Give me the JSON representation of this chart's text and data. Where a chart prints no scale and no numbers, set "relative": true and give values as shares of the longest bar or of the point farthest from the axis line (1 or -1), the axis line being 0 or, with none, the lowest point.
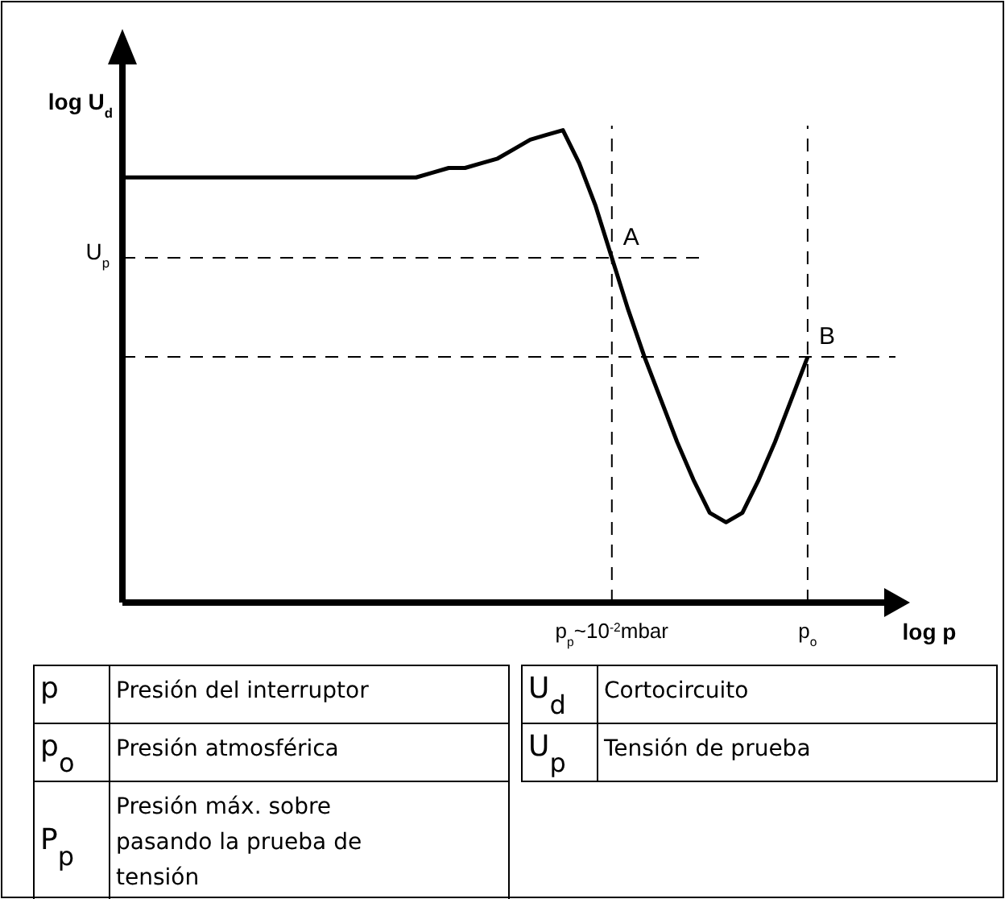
{
  "chart_data": {
    "type": "line",
    "relative": true,
    "xlabel": "log p",
    "ylabel": "log U$_{d}$",
    "marker": "none",
    "line_style": "solid",
    "categories": [
      null,
      null,
      null,
      null,
      null,
      null,
      null,
      null,
      null,
      null,
      null,
      null,
      null,
      null,
      null,
      null,
      null,
      null,
      null,
      null,
      null,
      null,
      null,
      null,
      null,
      null,
      null,
      null,
      null,
      null,
      "p$_{p}$~10$^{-2}$mbar",
      null,
      null,
      null,
      null,
      null,
      null,
      null,
      null,
      null,
      null,
      null,
      "p$_{o}$"
    ],
    "series": [
      {
        "color": "#000000",
        "values": [
          0.9,
          0.9,
          0.9,
          0.9,
          0.9,
          0.9,
          0.9,
          0.9,
          0.9,
          0.9,
          0.9,
          0.9,
          0.9,
          0.9,
          0.9,
          0.9,
          0.9,
          0.9,
          0.9,
          0.91,
          0.92,
          0.92,
          0.93,
          0.94,
          0.96,
          0.98,
          0.99,
          1,
          0.93,
          0.84,
          0.73,
          0.62,
          0.52,
          0.43,
          0.34,
          0.26,
          0.19,
          0.17,
          0.19,
          0.26,
          0.34,
          0.43,
          0.52
        ]
      }
    ],
    "ref_lines": [
      {
        "axis": "y",
        "value": 0.73,
        "label": "U$_{p}$",
        "line_style": "dashed",
        "color": "#000000"
      },
      {
        "axis": "y",
        "value": 0.52,
        "label": null,
        "line_style": "dashed",
        "color": "#000000"
      },
      {
        "axis": "x",
        "value": "p$_{p}$~10$^{-2}$mbar",
        "line_style": "dashed",
        "color": "#000000"
      },
      {
        "axis": "x",
        "value": "p$_{o}$",
        "line_style": "dashed",
        "color": "#000000"
      }
    ],
    "annotations": [
      {
        "text": "A",
        "y": 0.73
      },
      {
        "text": "B",
        "y": 0.52
      },
      "p",
      "Presión del interruptor",
      "p$_{o}$",
      "Presión atmosférica",
      "P$_{p}$",
      "Presión máx. sobre pasando la prueba de tensión",
      "U$_{d}$",
      "Cortocircuito",
      "U$_{p}$",
      "Tensión de prueba"
    ]
  }
}
